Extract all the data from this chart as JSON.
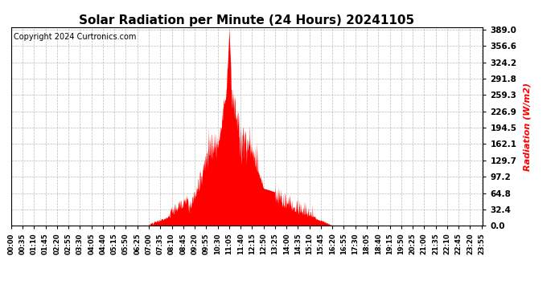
{
  "title": "Solar Radiation per Minute (24 Hours) 20241105",
  "copyright_text": "Copyright 2024 Curtronics.com",
  "ylabel": "Radiation (W/m2)",
  "ylabel_color": "#ff0000",
  "fill_color": "#ff0000",
  "line_color": "#ff0000",
  "background_color": "#ffffff",
  "grid_color": "#aaaaaa",
  "ymin": 0.0,
  "ymax": 389.0,
  "yticks": [
    0.0,
    32.4,
    64.8,
    97.2,
    129.7,
    162.1,
    194.5,
    226.9,
    259.3,
    291.8,
    324.2,
    356.6,
    389.0
  ],
  "total_minutes": 1440,
  "dawn_minute": 420,
  "dusk_minute": 982,
  "peak_minute": 665,
  "peak_value": 389.0
}
